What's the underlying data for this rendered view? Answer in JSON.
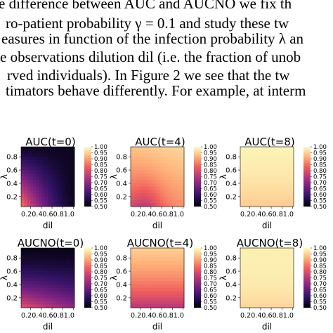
{
  "paper": {
    "lines": [
      "e difference between AUC and AUCNO we fix th",
      "ro-patient probability γ = 0.1 and study these tw",
      "easures in function of the infection probability λ an",
      "e observations dilution dil (i.e. the fraction of unob",
      "rved individuals).  In Figure 2 we see that the tw",
      "timators behave differently. For example, at interm"
    ]
  },
  "figure": {
    "panels": [
      {
        "title": "AUC(t=0)",
        "variant": "auc0"
      },
      {
        "title": "AUC(t=4)",
        "variant": "auc4"
      },
      {
        "title": "AUC(t=8)",
        "variant": "auc8"
      },
      {
        "title": "AUCNO(t=0)",
        "variant": "aucno0"
      },
      {
        "title": "AUCNO(t=4)",
        "variant": "aucno4"
      },
      {
        "title": "AUCNO(t=8)",
        "variant": "aucno8"
      }
    ],
    "x_label": "dil",
    "y_label": "λ",
    "x_ticks": [
      "0.2",
      "0.4",
      "0.6",
      "0.8",
      "1.0"
    ],
    "x_tick_text": "0.20.40.60.81.0",
    "y_ticks": [
      "0.2",
      "0.4",
      "0.6",
      "0.8"
    ],
    "colorbar_ticks": [
      "1.00",
      "0.95",
      "0.90",
      "0.85",
      "0.80",
      "0.75",
      "0.70",
      "0.65",
      "0.60",
      "0.55",
      "0.50"
    ],
    "colormap": [
      "#000004",
      "#2c115f",
      "#721f81",
      "#b73779",
      "#f1605d",
      "#feb078",
      "#fcfdbf"
    ]
  }
}
